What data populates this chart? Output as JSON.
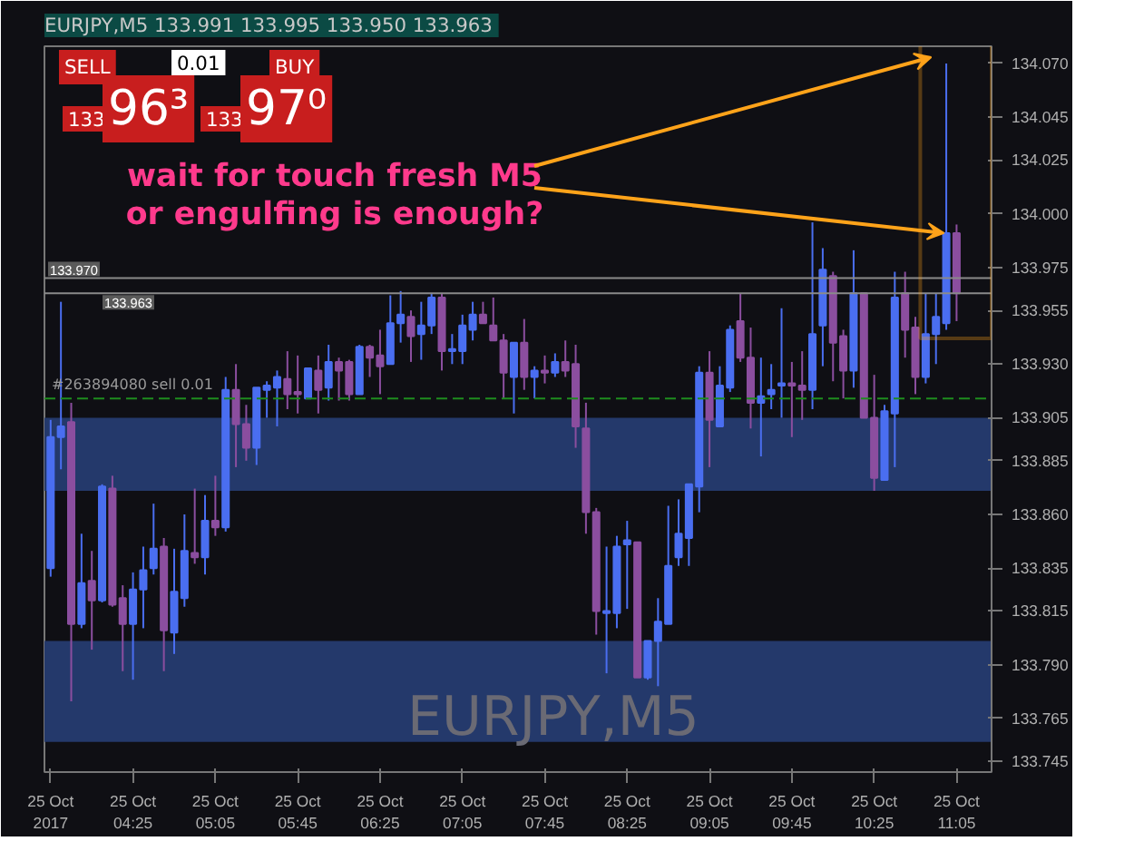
{
  "chart_data": {
    "type": "candlestick",
    "title": "EURJPY,M5  133.991 133.995 133.950 133.963",
    "x": [
      "2017-10-25T03:45",
      "2017-10-25T03:50",
      "2017-10-25T03:55",
      "2017-10-25T04:00",
      "2017-10-25T04:05",
      "2017-10-25T04:10",
      "2017-10-25T04:15",
      "2017-10-25T04:20",
      "2017-10-25T04:25",
      "2017-10-25T04:30",
      "2017-10-25T04:35",
      "2017-10-25T04:40",
      "2017-10-25T04:45",
      "2017-10-25T04:50",
      "2017-10-25T04:55",
      "2017-10-25T05:00",
      "2017-10-25T05:05",
      "2017-10-25T05:10",
      "2017-10-25T05:15",
      "2017-10-25T05:20",
      "2017-10-25T05:25",
      "2017-10-25T05:30",
      "2017-10-25T05:35",
      "2017-10-25T05:40",
      "2017-10-25T05:45",
      "2017-10-25T05:50",
      "2017-10-25T05:55",
      "2017-10-25T06:00",
      "2017-10-25T06:05",
      "2017-10-25T06:10",
      "2017-10-25T06:15",
      "2017-10-25T06:20",
      "2017-10-25T06:25",
      "2017-10-25T06:30",
      "2017-10-25T06:35",
      "2017-10-25T06:40",
      "2017-10-25T06:45",
      "2017-10-25T06:50",
      "2017-10-25T06:55",
      "2017-10-25T07:00",
      "2017-10-25T07:05",
      "2017-10-25T07:10",
      "2017-10-25T07:15",
      "2017-10-25T07:20",
      "2017-10-25T07:25",
      "2017-10-25T07:30",
      "2017-10-25T07:35",
      "2017-10-25T07:40",
      "2017-10-25T07:45",
      "2017-10-25T07:50",
      "2017-10-25T07:55",
      "2017-10-25T08:00",
      "2017-10-25T08:05",
      "2017-10-25T08:10",
      "2017-10-25T08:15",
      "2017-10-25T08:20",
      "2017-10-25T08:25",
      "2017-10-25T08:30",
      "2017-10-25T08:35",
      "2017-10-25T08:40",
      "2017-10-25T08:45",
      "2017-10-25T08:50",
      "2017-10-25T08:55",
      "2017-10-25T09:00",
      "2017-10-25T09:05",
      "2017-10-25T09:10",
      "2017-10-25T09:15",
      "2017-10-25T09:20",
      "2017-10-25T09:25",
      "2017-10-25T09:30",
      "2017-10-25T09:35",
      "2017-10-25T09:40",
      "2017-10-25T09:45",
      "2017-10-25T09:50",
      "2017-10-25T09:55",
      "2017-10-25T10:00",
      "2017-10-25T10:05",
      "2017-10-25T10:10",
      "2017-10-25T10:15",
      "2017-10-25T10:20",
      "2017-10-25T10:25",
      "2017-10-25T10:30",
      "2017-10-25T10:35",
      "2017-10-25T10:40",
      "2017-10-25T10:45",
      "2017-10-25T10:50",
      "2017-10-25T10:55",
      "2017-10-25T11:00",
      "2017-10-25T11:05"
    ],
    "ohlc": [
      [
        133.835,
        133.904,
        133.831,
        133.896
      ],
      [
        133.896,
        133.959,
        133.881,
        133.901
      ],
      [
        133.903,
        133.912,
        133.773,
        133.809
      ],
      [
        133.809,
        133.851,
        133.807,
        133.828
      ],
      [
        133.829,
        133.843,
        133.797,
        133.82
      ],
      [
        133.82,
        133.874,
        133.819,
        133.873
      ],
      [
        133.872,
        133.878,
        133.817,
        133.818
      ],
      [
        133.821,
        133.827,
        133.787,
        133.809
      ],
      [
        133.809,
        133.833,
        133.783,
        133.825
      ],
      [
        133.825,
        133.845,
        133.807,
        133.834
      ],
      [
        133.835,
        133.865,
        133.832,
        133.844
      ],
      [
        133.845,
        133.849,
        133.787,
        133.806
      ],
      [
        133.805,
        133.844,
        133.795,
        133.824
      ],
      [
        133.821,
        133.86,
        133.817,
        133.843
      ],
      [
        133.842,
        133.872,
        133.837,
        133.84
      ],
      [
        133.84,
        133.869,
        133.832,
        133.857
      ],
      [
        133.857,
        133.878,
        133.85,
        133.854
      ],
      [
        133.854,
        133.924,
        133.852,
        133.918
      ],
      [
        133.918,
        133.93,
        133.882,
        133.902
      ],
      [
        133.902,
        133.911,
        133.885,
        133.891
      ],
      [
        133.891,
        133.919,
        133.883,
        133.919
      ],
      [
        133.918,
        133.922,
        133.905,
        133.92
      ],
      [
        133.919,
        133.927,
        133.901,
        133.924
      ],
      [
        133.923,
        133.936,
        133.909,
        133.916
      ],
      [
        133.917,
        133.934,
        133.907,
        133.916
      ],
      [
        133.914,
        133.928,
        133.914,
        133.928
      ],
      [
        133.927,
        133.934,
        133.907,
        133.918
      ],
      [
        133.919,
        133.939,
        133.913,
        133.931
      ],
      [
        133.931,
        133.933,
        133.913,
        133.927
      ],
      [
        133.931,
        133.932,
        133.913,
        133.916
      ],
      [
        133.916,
        133.939,
        133.916,
        133.938
      ],
      [
        133.938,
        133.939,
        133.924,
        133.933
      ],
      [
        133.934,
        133.946,
        133.916,
        133.929
      ],
      [
        133.93,
        133.962,
        133.93,
        133.949
      ],
      [
        133.949,
        133.964,
        133.94,
        133.953
      ],
      [
        133.952,
        133.955,
        133.931,
        133.943
      ],
      [
        133.944,
        133.959,
        133.932,
        133.948
      ],
      [
        133.948,
        133.963,
        133.944,
        133.961
      ],
      [
        133.961,
        133.963,
        133.927,
        133.936
      ],
      [
        133.936,
        133.944,
        133.93,
        133.937
      ],
      [
        133.936,
        133.953,
        133.93,
        133.948
      ],
      [
        133.946,
        133.959,
        133.941,
        133.953
      ],
      [
        133.953,
        133.959,
        133.949,
        133.949
      ],
      [
        133.948,
        133.961,
        133.941,
        133.941
      ],
      [
        133.941,
        133.944,
        133.914,
        133.926
      ],
      [
        133.924,
        133.94,
        133.907,
        133.94
      ],
      [
        133.94,
        133.951,
        133.918,
        133.924
      ],
      [
        133.924,
        133.929,
        133.914,
        133.927
      ],
      [
        133.927,
        133.934,
        133.921,
        133.926
      ],
      [
        133.926,
        133.935,
        133.924,
        133.931
      ],
      [
        133.931,
        133.941,
        133.924,
        133.927
      ],
      [
        133.93,
        133.939,
        133.891,
        133.901
      ],
      [
        133.9,
        133.912,
        133.851,
        133.861
      ],
      [
        133.861,
        133.863,
        133.804,
        133.815
      ],
      [
        133.814,
        133.845,
        133.786,
        133.815
      ],
      [
        133.814,
        133.85,
        133.807,
        133.845
      ],
      [
        133.846,
        133.857,
        133.816,
        133.848
      ],
      [
        133.847,
        133.847,
        133.784,
        133.784
      ],
      [
        133.784,
        133.801,
        133.783,
        133.801
      ],
      [
        133.801,
        133.821,
        133.78,
        133.81
      ],
      [
        133.809,
        133.864,
        133.809,
        133.836
      ],
      [
        133.84,
        133.867,
        133.836,
        133.851
      ],
      [
        133.849,
        133.874,
        133.836,
        133.874
      ],
      [
        133.873,
        133.929,
        133.861,
        133.926
      ],
      [
        133.926,
        133.936,
        133.882,
        133.904
      ],
      [
        133.901,
        133.929,
        133.901,
        133.92
      ],
      [
        133.919,
        133.948,
        133.917,
        133.946
      ],
      [
        133.95,
        133.963,
        133.931,
        133.933
      ],
      [
        133.933,
        133.947,
        133.9,
        133.912
      ],
      [
        133.912,
        133.933,
        133.887,
        133.915
      ],
      [
        133.916,
        133.93,
        133.909,
        133.918
      ],
      [
        133.92,
        133.956,
        133.905,
        133.921
      ],
      [
        133.921,
        133.931,
        133.896,
        133.92
      ],
      [
        133.92,
        133.936,
        133.904,
        133.918
      ],
      [
        133.918,
        133.996,
        133.909,
        133.944
      ],
      [
        133.948,
        133.984,
        133.929,
        133.974
      ],
      [
        133.971,
        133.973,
        133.922,
        133.94
      ],
      [
        133.943,
        133.946,
        133.914,
        133.927
      ],
      [
        133.927,
        133.983,
        133.919,
        133.963
      ],
      [
        133.963,
        133.963,
        133.905,
        133.905
      ],
      [
        133.905,
        133.925,
        133.871,
        133.877
      ],
      [
        133.876,
        133.911,
        133.876,
        133.908
      ],
      [
        133.907,
        133.973,
        133.882,
        133.961
      ],
      [
        133.963,
        133.973,
        133.933,
        133.946
      ],
      [
        133.947,
        133.952,
        133.916,
        133.924
      ],
      [
        133.924,
        133.963,
        133.921,
        133.944
      ],
      [
        133.944,
        133.963,
        133.93,
        133.952
      ],
      [
        133.949,
        134.07,
        133.946,
        133.991
      ],
      [
        133.991,
        133.995,
        133.95,
        133.963
      ]
    ],
    "colors": [
      "#4a6ef0",
      "#4a6ef0",
      "#8b4e9f",
      "#4a6ef0",
      "#8b4e9f",
      "#4a6ef0",
      "#8b4e9f",
      "#8b4e9f",
      "#4a6ef0",
      "#4a6ef0",
      "#4a6ef0",
      "#8b4e9f",
      "#4a6ef0",
      "#4a6ef0",
      "#8b4e9f",
      "#4a6ef0",
      "#8b4e9f",
      "#4a6ef0",
      "#8b4e9f",
      "#8b4e9f",
      "#4a6ef0",
      "#4a6ef0",
      "#4a6ef0",
      "#8b4e9f",
      "#8b4e9f",
      "#4a6ef0",
      "#8b4e9f",
      "#4a6ef0",
      "#8b4e9f",
      "#8b4e9f",
      "#4a6ef0",
      "#8b4e9f",
      "#8b4e9f",
      "#4a6ef0",
      "#4a6ef0",
      "#8b4e9f",
      "#4a6ef0",
      "#4a6ef0",
      "#8b4e9f",
      "#4a6ef0",
      "#4a6ef0",
      "#4a6ef0",
      "#8b4e9f",
      "#8b4e9f",
      "#8b4e9f",
      "#4a6ef0",
      "#8b4e9f",
      "#4a6ef0",
      "#8b4e9f",
      "#4a6ef0",
      "#8b4e9f",
      "#8b4e9f",
      "#8b4e9f",
      "#8b4e9f",
      "#4a6ef0",
      "#4a6ef0",
      "#4a6ef0",
      "#8b4e9f",
      "#4a6ef0",
      "#4a6ef0",
      "#4a6ef0",
      "#4a6ef0",
      "#4a6ef0",
      "#4a6ef0",
      "#8b4e9f",
      "#4a6ef0",
      "#4a6ef0",
      "#8b4e9f",
      "#8b4e9f",
      "#4a6ef0",
      "#4a6ef0",
      "#4a6ef0",
      "#8b4e9f",
      "#8b4e9f",
      "#4a6ef0",
      "#4a6ef0",
      "#8b4e9f",
      "#8b4e9f",
      "#4a6ef0",
      "#8b4e9f",
      "#8b4e9f",
      "#4a6ef0",
      "#4a6ef0",
      "#8b4e9f",
      "#8b4e9f",
      "#4a6ef0",
      "#4a6ef0",
      "#4a6ef0",
      "#8b4e9f"
    ],
    "xlim": [
      "2017-10-25T03:42",
      "2017-10-25T11:22"
    ],
    "xticks": [
      {
        "value": "2017-10-25T03:45",
        "label": "25 Oct 2017"
      },
      {
        "value": "2017-10-25T04:25",
        "label": "25 Oct 04:25"
      },
      {
        "value": "2017-10-25T05:05",
        "label": "25 Oct 05:05"
      },
      {
        "value": "2017-10-25T05:45",
        "label": "25 Oct 05:45"
      },
      {
        "value": "2017-10-25T06:25",
        "label": "25 Oct 06:25"
      },
      {
        "value": "2017-10-25T07:05",
        "label": "25 Oct 07:05"
      },
      {
        "value": "2017-10-25T07:45",
        "label": "25 Oct 07:45"
      },
      {
        "value": "2017-10-25T08:25",
        "label": "25 Oct 08:25"
      },
      {
        "value": "2017-10-25T09:05",
        "label": "25 Oct 09:05"
      },
      {
        "value": "2017-10-25T09:45",
        "label": "25 Oct 09:45"
      },
      {
        "value": "2017-10-25T10:25",
        "label": "25 Oct 10:25"
      },
      {
        "value": "2017-10-25T11:05",
        "label": "25 Oct 11:05"
      }
    ],
    "ylim": [
      133.74,
      134.078
    ],
    "yticks": [
      {
        "value": 134.07,
        "label": "134.070"
      },
      134.045,
      134.025,
      {
        "value": 134.0,
        "label": "134.000"
      },
      133.975,
      133.955,
      {
        "value": 133.93,
        "label": "133.930"
      },
      133.905,
      133.885,
      {
        "value": 133.86,
        "label": "133.860"
      },
      133.835,
      133.815,
      {
        "value": 133.79,
        "label": "133.790"
      },
      133.765,
      133.745
    ],
    "ref_lines": [
      {
        "axis": "y",
        "value": 133.97,
        "label": "133.970",
        "color": "#8a8a8a"
      },
      {
        "axis": "y",
        "value": 133.963,
        "label": "133.963",
        "color": "#8a8a8a"
      },
      {
        "axis": "y",
        "value": 133.914,
        "label": "#263894080 sell 0.01",
        "color": "#1e8c1e",
        "line_style": "dashed"
      }
    ],
    "bands": [
      {
        "axis": "y",
        "from": 133.871,
        "to": 133.905,
        "color": "#24396b"
      },
      {
        "axis": "y",
        "from": 133.754,
        "to": 133.801,
        "color": "#24396b"
      }
    ],
    "annotations": [
      "SELL",
      "0.01",
      "BUY",
      "133",
      "96³",
      "133",
      "97⁰",
      "wait for touch fresh M5\nor engulfing is enough?",
      "EURJPY,M5"
    ]
  }
}
